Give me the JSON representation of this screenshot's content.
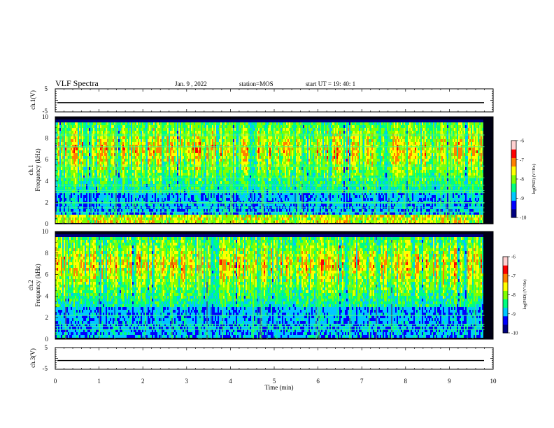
{
  "header": {
    "title": "VLF Spectra",
    "date": "Jan. 9 , 2022",
    "station": "station=MOS",
    "start": "start UT =  19: 40: 1"
  },
  "colorbar": {
    "label": "log(PSD) (V²/Hz)",
    "colors": [
      "#000080",
      "#0000ff",
      "#00c8ff",
      "#00ff80",
      "#80ff00",
      "#ffff00",
      "#ff8000",
      "#ff0000",
      "#ffd0d0"
    ]
  },
  "chart_data": [
    {
      "id": "ch1-voltage",
      "type": "line",
      "ylabel": "ch.1(V)",
      "ylim": [
        -5,
        5
      ],
      "y_ticks": [
        "5",
        "-5"
      ],
      "xlim": [
        0,
        10
      ],
      "baseline_value": -1,
      "x_major_ticks": [
        0,
        1,
        2,
        3,
        4,
        5,
        6,
        7,
        8,
        9,
        10
      ]
    },
    {
      "id": "ch1-spectrogram",
      "type": "heatmap",
      "ylabel": "ch.1\nFrequency (kHz)",
      "ylim": [
        0,
        10
      ],
      "y_ticks": [
        "0",
        "2",
        "4",
        "6",
        "8",
        "10"
      ],
      "xlim": [
        0,
        10
      ],
      "colorbar_ticks": [
        "-6",
        "-7",
        "-8",
        "-9",
        "-10"
      ],
      "colorbar_range": [
        -10,
        -6
      ],
      "horizontal_lines_khz": [
        1.1,
        1.5,
        1.9,
        2.0,
        2.9,
        3.1,
        3.6,
        4.3,
        5.4,
        7.2,
        8.3
      ]
    },
    {
      "id": "ch2-spectrogram",
      "type": "heatmap",
      "ylabel": "ch.2\nFrequency (kHz)",
      "ylim": [
        0,
        10
      ],
      "y_ticks": [
        "0",
        "2",
        "4",
        "6",
        "8",
        "10"
      ],
      "xlim": [
        0,
        10
      ],
      "colorbar_ticks": [
        "-6",
        "-7",
        "-8",
        "-9",
        "-10"
      ],
      "colorbar_range": [
        -10,
        -6
      ],
      "horizontal_lines_khz": [
        0.9,
        1.2,
        1.4,
        2.2
      ]
    },
    {
      "id": "ch3-voltage",
      "type": "line",
      "ylabel": "ch.3(V)",
      "ylim": [
        -5,
        5
      ],
      "y_ticks": [
        "5",
        "-5"
      ],
      "xlim": [
        0,
        10
      ],
      "baseline_value": -1,
      "xlabel": "Time (min)",
      "x_tick_labels": [
        "0",
        "1",
        "2",
        "3",
        "4",
        "5",
        "6",
        "7",
        "8",
        "9",
        "10"
      ]
    }
  ]
}
